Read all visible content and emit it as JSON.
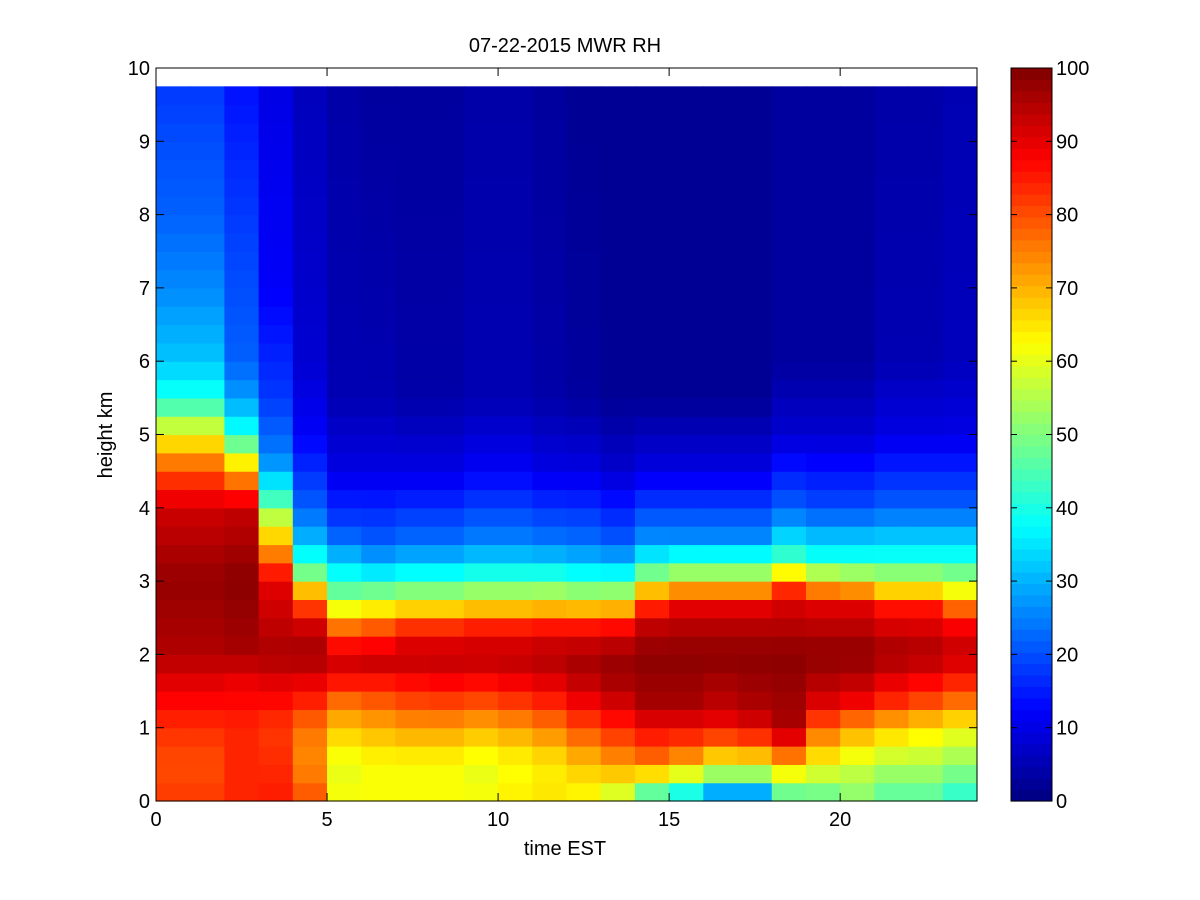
{
  "chart_data": {
    "type": "heatmap",
    "title": "07-22-2015 MWR RH",
    "xlabel": "time EST",
    "ylabel": "height km",
    "xlim": [
      0,
      24
    ],
    "ylim": [
      0,
      10
    ],
    "x_ticks": [
      0,
      5,
      10,
      15,
      20
    ],
    "y_ticks": [
      0,
      1,
      2,
      3,
      4,
      5,
      6,
      7,
      8,
      9,
      10
    ],
    "colorbar": {
      "min": 0,
      "max": 100,
      "ticks": [
        0,
        10,
        20,
        30,
        40,
        50,
        60,
        70,
        80,
        90,
        100
      ],
      "colormap": "jet"
    },
    "grid": false,
    "time_step_hours": 1,
    "times": [
      0,
      1,
      2,
      3,
      4,
      5,
      6,
      7,
      8,
      9,
      10,
      11,
      12,
      13,
      14,
      15,
      16,
      17,
      18,
      19,
      20,
      21,
      22,
      23
    ],
    "height_step_km": 0.25,
    "heights_km": [
      0,
      0.25,
      0.5,
      0.75,
      1,
      1.25,
      1.5,
      1.75,
      2,
      2.25,
      2.5,
      2.75,
      3,
      3.25,
      3.5,
      3.75,
      4,
      4.25,
      4.5,
      4.75,
      5,
      5.25,
      5.5,
      5.75,
      6,
      6.25,
      6.5,
      6.75,
      7,
      7.25,
      7.5,
      7.75,
      8,
      8.25,
      8.5,
      8.75,
      9,
      9.25,
      9.5
    ],
    "profiles": [
      {
        "time": 0,
        "rh": [
          [
            0,
            82
          ],
          [
            0.5,
            80
          ],
          [
            1,
            83
          ],
          [
            1.6,
            90
          ],
          [
            2,
            95
          ],
          [
            3,
            98
          ],
          [
            4,
            92
          ],
          [
            4.5,
            80
          ],
          [
            5,
            62
          ],
          [
            5.5,
            40
          ],
          [
            6,
            32
          ],
          [
            7,
            26
          ],
          [
            8,
            22
          ],
          [
            9,
            20
          ],
          [
            9.75,
            18
          ]
        ]
      },
      {
        "time": 1,
        "rh": [
          [
            0,
            82
          ],
          [
            0.5,
            80
          ],
          [
            1,
            83
          ],
          [
            1.6,
            90
          ],
          [
            2,
            95
          ],
          [
            3,
            98
          ],
          [
            4,
            92
          ],
          [
            4.5,
            80
          ],
          [
            5,
            62
          ],
          [
            5.5,
            40
          ],
          [
            6,
            32
          ],
          [
            7,
            26
          ],
          [
            8,
            22
          ],
          [
            9,
            20
          ],
          [
            9.75,
            18
          ]
        ]
      },
      {
        "time": 2,
        "rh": [
          [
            0,
            84
          ],
          [
            1,
            84
          ],
          [
            1.7,
            90
          ],
          [
            2,
            96
          ],
          [
            3,
            99
          ],
          [
            4,
            93
          ],
          [
            4.3,
            80
          ],
          [
            4.7,
            60
          ],
          [
            5,
            40
          ],
          [
            5.5,
            28
          ],
          [
            6,
            22
          ],
          [
            8,
            18
          ],
          [
            9.75,
            14
          ]
        ]
      },
      {
        "time": 3,
        "rh": [
          [
            0,
            85
          ],
          [
            1,
            82
          ],
          [
            1.6,
            90
          ],
          [
            2,
            96
          ],
          [
            3,
            90
          ],
          [
            3.3,
            78
          ],
          [
            3.8,
            60
          ],
          [
            4.2,
            40
          ],
          [
            4.7,
            25
          ],
          [
            5.5,
            18
          ],
          [
            7,
            12
          ],
          [
            9.75,
            10
          ]
        ]
      },
      {
        "time": 4,
        "rh": [
          [
            0,
            80
          ],
          [
            0.5,
            74
          ],
          [
            1,
            76
          ],
          [
            1.4,
            85
          ],
          [
            2,
            97
          ],
          [
            2.4,
            92
          ],
          [
            2.8,
            75
          ],
          [
            3.1,
            50
          ],
          [
            3.5,
            32
          ],
          [
            4,
            22
          ],
          [
            5,
            12
          ],
          [
            6,
            8
          ],
          [
            9.75,
            6
          ]
        ]
      },
      {
        "time": 5,
        "rh": [
          [
            0,
            62
          ],
          [
            0.5,
            60
          ],
          [
            1,
            68
          ],
          [
            1.5,
            80
          ],
          [
            1.8,
            93
          ],
          [
            2.2,
            85
          ],
          [
            2.5,
            70
          ],
          [
            2.8,
            50
          ],
          [
            3.2,
            35
          ],
          [
            3.7,
            20
          ],
          [
            4.5,
            10
          ],
          [
            5.5,
            5
          ],
          [
            9.75,
            4
          ]
        ]
      },
      {
        "time": 6,
        "rh": [
          [
            0,
            62
          ],
          [
            0.5,
            62
          ],
          [
            1,
            70
          ],
          [
            1.5,
            82
          ],
          [
            1.9,
            93
          ],
          [
            2.3,
            83
          ],
          [
            2.7,
            60
          ],
          [
            3,
            40
          ],
          [
            3.5,
            22
          ],
          [
            4.5,
            10
          ],
          [
            5.5,
            5
          ],
          [
            9.75,
            3
          ]
        ]
      },
      {
        "time": 7,
        "rh": [
          [
            0,
            62
          ],
          [
            0.5,
            62
          ],
          [
            1,
            72
          ],
          [
            1.5,
            84
          ],
          [
            2,
            95
          ],
          [
            2.4,
            82
          ],
          [
            2.7,
            62
          ],
          [
            3,
            42
          ],
          [
            3.5,
            24
          ],
          [
            4.5,
            10
          ],
          [
            5.5,
            4
          ],
          [
            9.75,
            3
          ]
        ]
      },
      {
        "time": 8,
        "rh": [
          [
            0,
            62
          ],
          [
            0.5,
            62
          ],
          [
            1,
            72
          ],
          [
            1.5,
            85
          ],
          [
            2,
            95
          ],
          [
            2.4,
            82
          ],
          [
            2.7,
            62
          ],
          [
            3,
            42
          ],
          [
            3.5,
            24
          ],
          [
            4.5,
            10
          ],
          [
            5.5,
            4
          ],
          [
            9.75,
            3
          ]
        ]
      },
      {
        "time": 9,
        "rh": [
          [
            0,
            62
          ],
          [
            0.5,
            60
          ],
          [
            1,
            70
          ],
          [
            1.5,
            84
          ],
          [
            2,
            95
          ],
          [
            2.4,
            84
          ],
          [
            2.7,
            64
          ],
          [
            3,
            44
          ],
          [
            3.5,
            26
          ],
          [
            4.5,
            12
          ],
          [
            5.5,
            5
          ],
          [
            9.75,
            4
          ]
        ]
      },
      {
        "time": 10,
        "rh": [
          [
            0,
            64
          ],
          [
            0.5,
            62
          ],
          [
            1,
            72
          ],
          [
            1.5,
            86
          ],
          [
            2,
            95
          ],
          [
            2.4,
            84
          ],
          [
            2.7,
            64
          ],
          [
            3,
            44
          ],
          [
            3.5,
            26
          ],
          [
            4.5,
            12
          ],
          [
            5.5,
            5
          ],
          [
            9.75,
            4
          ]
        ]
      },
      {
        "time": 11,
        "rh": [
          [
            0,
            65
          ],
          [
            0.5,
            64
          ],
          [
            1,
            75
          ],
          [
            1.5,
            88
          ],
          [
            2,
            96
          ],
          [
            2.4,
            85
          ],
          [
            2.7,
            65
          ],
          [
            3,
            44
          ],
          [
            3.5,
            25
          ],
          [
            4.5,
            10
          ],
          [
            5.5,
            4
          ],
          [
            9.75,
            3
          ]
        ]
      },
      {
        "time": 12,
        "rh": [
          [
            0,
            62
          ],
          [
            0.5,
            68
          ],
          [
            1,
            80
          ],
          [
            1.5,
            92
          ],
          [
            2,
            97
          ],
          [
            2.4,
            85
          ],
          [
            2.7,
            64
          ],
          [
            3,
            42
          ],
          [
            3.5,
            24
          ],
          [
            4.5,
            10
          ],
          [
            5.5,
            3
          ],
          [
            9.75,
            2
          ]
        ]
      },
      {
        "time": 13,
        "rh": [
          [
            0,
            55
          ],
          [
            0.5,
            72
          ],
          [
            1,
            84
          ],
          [
            1.5,
            95
          ],
          [
            2,
            98
          ],
          [
            2.4,
            86
          ],
          [
            2.7,
            65
          ],
          [
            3,
            42
          ],
          [
            3.5,
            22
          ],
          [
            4.5,
            8
          ],
          [
            5.5,
            2
          ],
          [
            9.75,
            2
          ]
        ]
      },
      {
        "time": 14,
        "rh": [
          [
            0,
            38
          ],
          [
            0.5,
            75
          ],
          [
            1,
            88
          ],
          [
            1.3,
            96
          ],
          [
            2,
            99
          ],
          [
            2.5,
            92
          ],
          [
            2.8,
            75
          ],
          [
            3.1,
            50
          ],
          [
            3.5,
            28
          ],
          [
            4.5,
            10
          ],
          [
            5.5,
            2
          ],
          [
            9.75,
            2
          ]
        ]
      },
      {
        "time": 15,
        "rh": [
          [
            0,
            30
          ],
          [
            0.5,
            70
          ],
          [
            1,
            88
          ],
          [
            1.3,
            96
          ],
          [
            2,
            99
          ],
          [
            2.6,
            92
          ],
          [
            2.9,
            72
          ],
          [
            3.2,
            46
          ],
          [
            3.6,
            26
          ],
          [
            4.5,
            10
          ],
          [
            5.5,
            2
          ],
          [
            9.75,
            2
          ]
        ]
      },
      {
        "time": 16,
        "rh": [
          [
            0,
            18
          ],
          [
            0.4,
            55
          ],
          [
            0.8,
            78
          ],
          [
            1.2,
            93
          ],
          [
            2,
            99
          ],
          [
            2.6,
            92
          ],
          [
            2.9,
            72
          ],
          [
            3.2,
            46
          ],
          [
            3.6,
            26
          ],
          [
            4.5,
            10
          ],
          [
            5.5,
            2
          ],
          [
            9.75,
            2
          ]
        ]
      },
      {
        "time": 17,
        "rh": [
          [
            0,
            18
          ],
          [
            0.4,
            55
          ],
          [
            0.8,
            80
          ],
          [
            1.2,
            95
          ],
          [
            2,
            99
          ],
          [
            2.6,
            92
          ],
          [
            2.9,
            72
          ],
          [
            3.2,
            46
          ],
          [
            3.6,
            26
          ],
          [
            4.5,
            10
          ],
          [
            5.5,
            2
          ],
          [
            9.75,
            2
          ]
        ]
      },
      {
        "time": 18,
        "rh": [
          [
            0,
            42
          ],
          [
            0.5,
            68
          ],
          [
            0.8,
            88
          ],
          [
            1.1,
            96
          ],
          [
            2,
            99
          ],
          [
            2.8,
            90
          ],
          [
            3.1,
            65
          ],
          [
            3.4,
            40
          ],
          [
            4,
            22
          ],
          [
            5,
            8
          ],
          [
            6,
            3
          ],
          [
            9.75,
            3
          ]
        ]
      },
      {
        "time": 19,
        "rh": [
          [
            0,
            45
          ],
          [
            0.5,
            62
          ],
          [
            1,
            78
          ],
          [
            1.4,
            92
          ],
          [
            2,
            99
          ],
          [
            2.7,
            90
          ],
          [
            3,
            65
          ],
          [
            3.3,
            40
          ],
          [
            4,
            20
          ],
          [
            5,
            8
          ],
          [
            6,
            3
          ],
          [
            9.75,
            3
          ]
        ]
      },
      {
        "time": 20,
        "rh": [
          [
            0,
            50
          ],
          [
            0.5,
            58
          ],
          [
            1,
            72
          ],
          [
            1.4,
            90
          ],
          [
            2,
            99
          ],
          [
            2.7,
            90
          ],
          [
            3,
            62
          ],
          [
            3.3,
            40
          ],
          [
            4,
            20
          ],
          [
            5,
            8
          ],
          [
            6,
            3
          ],
          [
            9.75,
            3
          ]
        ]
      },
      {
        "time": 21,
        "rh": [
          [
            0,
            45
          ],
          [
            0.5,
            55
          ],
          [
            1,
            68
          ],
          [
            1.4,
            85
          ],
          [
            2,
            97
          ],
          [
            2.6,
            88
          ],
          [
            2.9,
            65
          ],
          [
            3.3,
            40
          ],
          [
            4,
            22
          ],
          [
            5,
            10
          ],
          [
            6,
            5
          ],
          [
            9.75,
            4
          ]
        ]
      },
      {
        "time": 22,
        "rh": [
          [
            0,
            45
          ],
          [
            0.5,
            55
          ],
          [
            1,
            65
          ],
          [
            1.4,
            82
          ],
          [
            2,
            96
          ],
          [
            2.6,
            88
          ],
          [
            2.9,
            65
          ],
          [
            3.3,
            40
          ],
          [
            4,
            22
          ],
          [
            5,
            10
          ],
          [
            6,
            5
          ],
          [
            9.75,
            4
          ]
        ]
      },
      {
        "time": 23,
        "rh": [
          [
            0,
            40
          ],
          [
            0.5,
            52
          ],
          [
            1,
            62
          ],
          [
            1.4,
            78
          ],
          [
            2,
            94
          ],
          [
            2.5,
            86
          ],
          [
            2.9,
            60
          ],
          [
            3.3,
            40
          ],
          [
            4,
            22
          ],
          [
            5,
            10
          ],
          [
            6,
            6
          ],
          [
            9.75,
            5
          ]
        ]
      }
    ]
  }
}
